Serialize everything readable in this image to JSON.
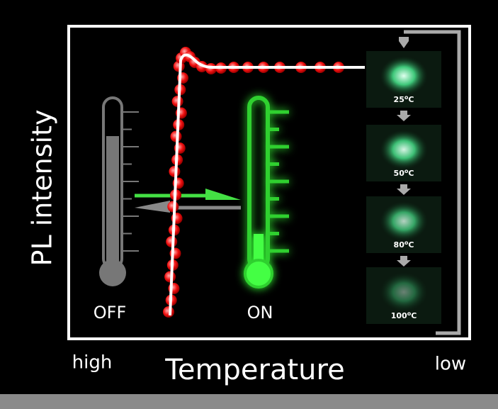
{
  "y_axis_label": "PL intensity",
  "x_axis_label": "Temperature",
  "x_axis_ends": {
    "left": "high",
    "right": "low"
  },
  "thermometers": {
    "off": "OFF",
    "on": "ON"
  },
  "images": [
    {
      "number": "25",
      "degree": "o",
      "unit": "C"
    },
    {
      "number": "50",
      "degree": "o",
      "unit": "C"
    },
    {
      "number": "80",
      "degree": "o",
      "unit": "C"
    },
    {
      "number": "100",
      "degree": "o",
      "unit": "C"
    }
  ]
}
